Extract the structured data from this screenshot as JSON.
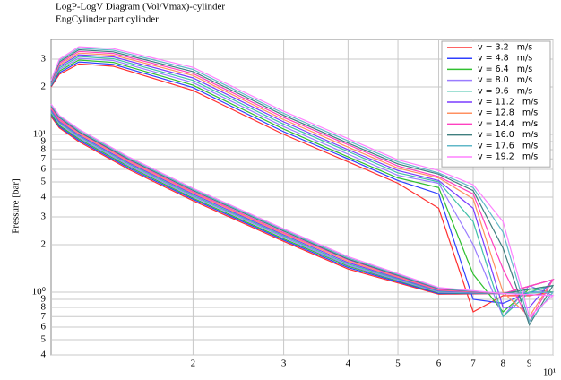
{
  "chart_data": {
    "type": "line",
    "title": "LogP-LogV Diagram (Vol/Vmax)-cylinder",
    "subtitle": "EngCylinder part cylinder",
    "y_label": "Pressure [bar]",
    "x_log": true,
    "y_log": true,
    "grid": true,
    "xlim": [
      1.06,
      10
    ],
    "ylim": [
      0.4,
      40
    ],
    "xticks": [
      2,
      3,
      4,
      5,
      6,
      7,
      8,
      9,
      {
        "value": 10,
        "label": "10¹"
      }
    ],
    "yticks": [
      {
        "value": 0.4,
        "label": "4"
      },
      {
        "value": 0.5,
        "label": "5"
      },
      {
        "value": 0.6,
        "label": "6"
      },
      {
        "value": 0.7,
        "label": "7"
      },
      {
        "value": 0.8,
        "label": "8"
      },
      {
        "value": 0.9,
        "label": "9"
      },
      {
        "value": 1,
        "label": "10⁰"
      },
      2,
      3,
      4,
      5,
      6,
      7,
      8,
      9,
      {
        "value": 10,
        "label": "10¹"
      },
      {
        "value": 20,
        "label": "2"
      },
      {
        "value": 30,
        "label": "3"
      }
    ],
    "x": [
      1.06,
      1.1,
      1.2,
      1.4,
      2,
      3,
      4,
      5,
      6,
      7,
      8,
      9,
      10,
      10,
      8,
      6,
      4,
      3,
      2,
      1.5,
      1.2,
      1.1,
      1.06
    ],
    "series": [
      {
        "name": "v = 3.2   m/s",
        "color": "#ff3030",
        "values": [
          20,
          24,
          28,
          27,
          19,
          10,
          6.7,
          4.9,
          3.4,
          0.75,
          0.95,
          0.95,
          1.0,
          1.0,
          0.98,
          0.97,
          1.4,
          2.1,
          3.8,
          6,
          9,
          11,
          13
        ]
      },
      {
        "name": "v = 4.8   m/s",
        "color": "#2f3fff",
        "values": [
          20.2,
          24.6,
          28.8,
          27.8,
          19.8,
          10.4,
          7.0,
          5.1,
          4.2,
          0.9,
          0.85,
          1.0,
          1.0,
          1.0,
          0.98,
          0.98,
          1.43,
          2.14,
          3.88,
          6.12,
          9.18,
          11.2,
          13.3
        ]
      },
      {
        "name": "v = 6.4   m/s",
        "color": "#30c030",
        "values": [
          20.4,
          25.2,
          29.6,
          28.6,
          20.5,
          10.8,
          7.2,
          5.3,
          4.6,
          1.3,
          0.75,
          1.05,
          1.0,
          1.0,
          0.98,
          0.99,
          1.46,
          2.18,
          3.95,
          6.24,
          9.36,
          11.4,
          13.5
        ]
      },
      {
        "name": "v = 8.0   m/s",
        "color": "#9a7cff",
        "values": [
          20.6,
          25.8,
          30.4,
          29.4,
          21.3,
          11.2,
          7.5,
          5.5,
          4.9,
          2.0,
          0.7,
          1.1,
          0.95,
          0.95,
          0.98,
          1.0,
          1.48,
          2.23,
          4.03,
          6.36,
          9.54,
          11.7,
          13.8
        ]
      },
      {
        "name": "v = 9.6   m/s",
        "color": "#40c0a8",
        "values": [
          20.8,
          26.4,
          31.2,
          30.2,
          22,
          11.6,
          7.8,
          5.7,
          5.0,
          2.8,
          0.7,
          1.0,
          1.1,
          1.1,
          0.98,
          1.01,
          1.51,
          2.27,
          4.1,
          6.48,
          9.72,
          11.9,
          14.0
        ]
      },
      {
        "name": "v = 11.2   m/s",
        "color": "#7a3cff",
        "values": [
          21,
          27,
          32,
          31,
          22.8,
          12,
          8.0,
          5.9,
          5.1,
          3.4,
          0.8,
          0.8,
          1.2,
          1.2,
          0.98,
          1.02,
          1.54,
          2.31,
          4.18,
          6.6,
          9.9,
          12.1,
          14.3
        ]
      },
      {
        "name": "v = 12.8   m/s",
        "color": "#ff9060",
        "values": [
          21.2,
          27.6,
          32.8,
          31.8,
          23.6,
          12.4,
          8.3,
          6.1,
          5.3,
          3.9,
          1.0,
          0.7,
          1.2,
          1.2,
          0.98,
          1.03,
          1.57,
          2.35,
          4.26,
          6.72,
          10.1,
          12.3,
          14.6
        ]
      },
      {
        "name": "v = 14.4   m/s",
        "color": "#ff40c0",
        "values": [
          21.4,
          28.2,
          33.6,
          32.6,
          24.3,
          12.8,
          8.6,
          6.3,
          5.4,
          4.2,
          1.4,
          0.65,
          1.2,
          1.2,
          0.98,
          1.04,
          1.6,
          2.39,
          4.33,
          6.84,
          10.3,
          12.5,
          14.8
        ]
      },
      {
        "name": "v = 16.0   m/s",
        "color": "#3f7f7f",
        "values": [
          21.6,
          28.8,
          34.4,
          33.4,
          25,
          13.2,
          8.8,
          6.5,
          5.6,
          4.4,
          1.9,
          0.62,
          1.1,
          1.1,
          0.98,
          1.05,
          1.62,
          2.44,
          4.41,
          6.96,
          10.4,
          12.8,
          15.1
        ]
      },
      {
        "name": "v = 17.6   m/s",
        "color": "#60b8c8",
        "values": [
          21.8,
          29.4,
          35.2,
          34.2,
          25.8,
          13.6,
          9.1,
          6.7,
          5.7,
          4.6,
          2.4,
          0.65,
          1.0,
          1.0,
          0.98,
          1.06,
          1.65,
          2.48,
          4.48,
          7.08,
          10.6,
          13.0,
          15.3
        ]
      },
      {
        "name": "v = 19.2   m/s",
        "color": "#ff80ff",
        "values": [
          22,
          30,
          36,
          35,
          26.6,
          14,
          9.4,
          6.9,
          5.9,
          4.8,
          2.8,
          0.7,
          0.95,
          0.95,
          0.98,
          1.07,
          1.68,
          2.52,
          4.56,
          7.2,
          10.8,
          13.2,
          15.6
        ]
      }
    ]
  }
}
